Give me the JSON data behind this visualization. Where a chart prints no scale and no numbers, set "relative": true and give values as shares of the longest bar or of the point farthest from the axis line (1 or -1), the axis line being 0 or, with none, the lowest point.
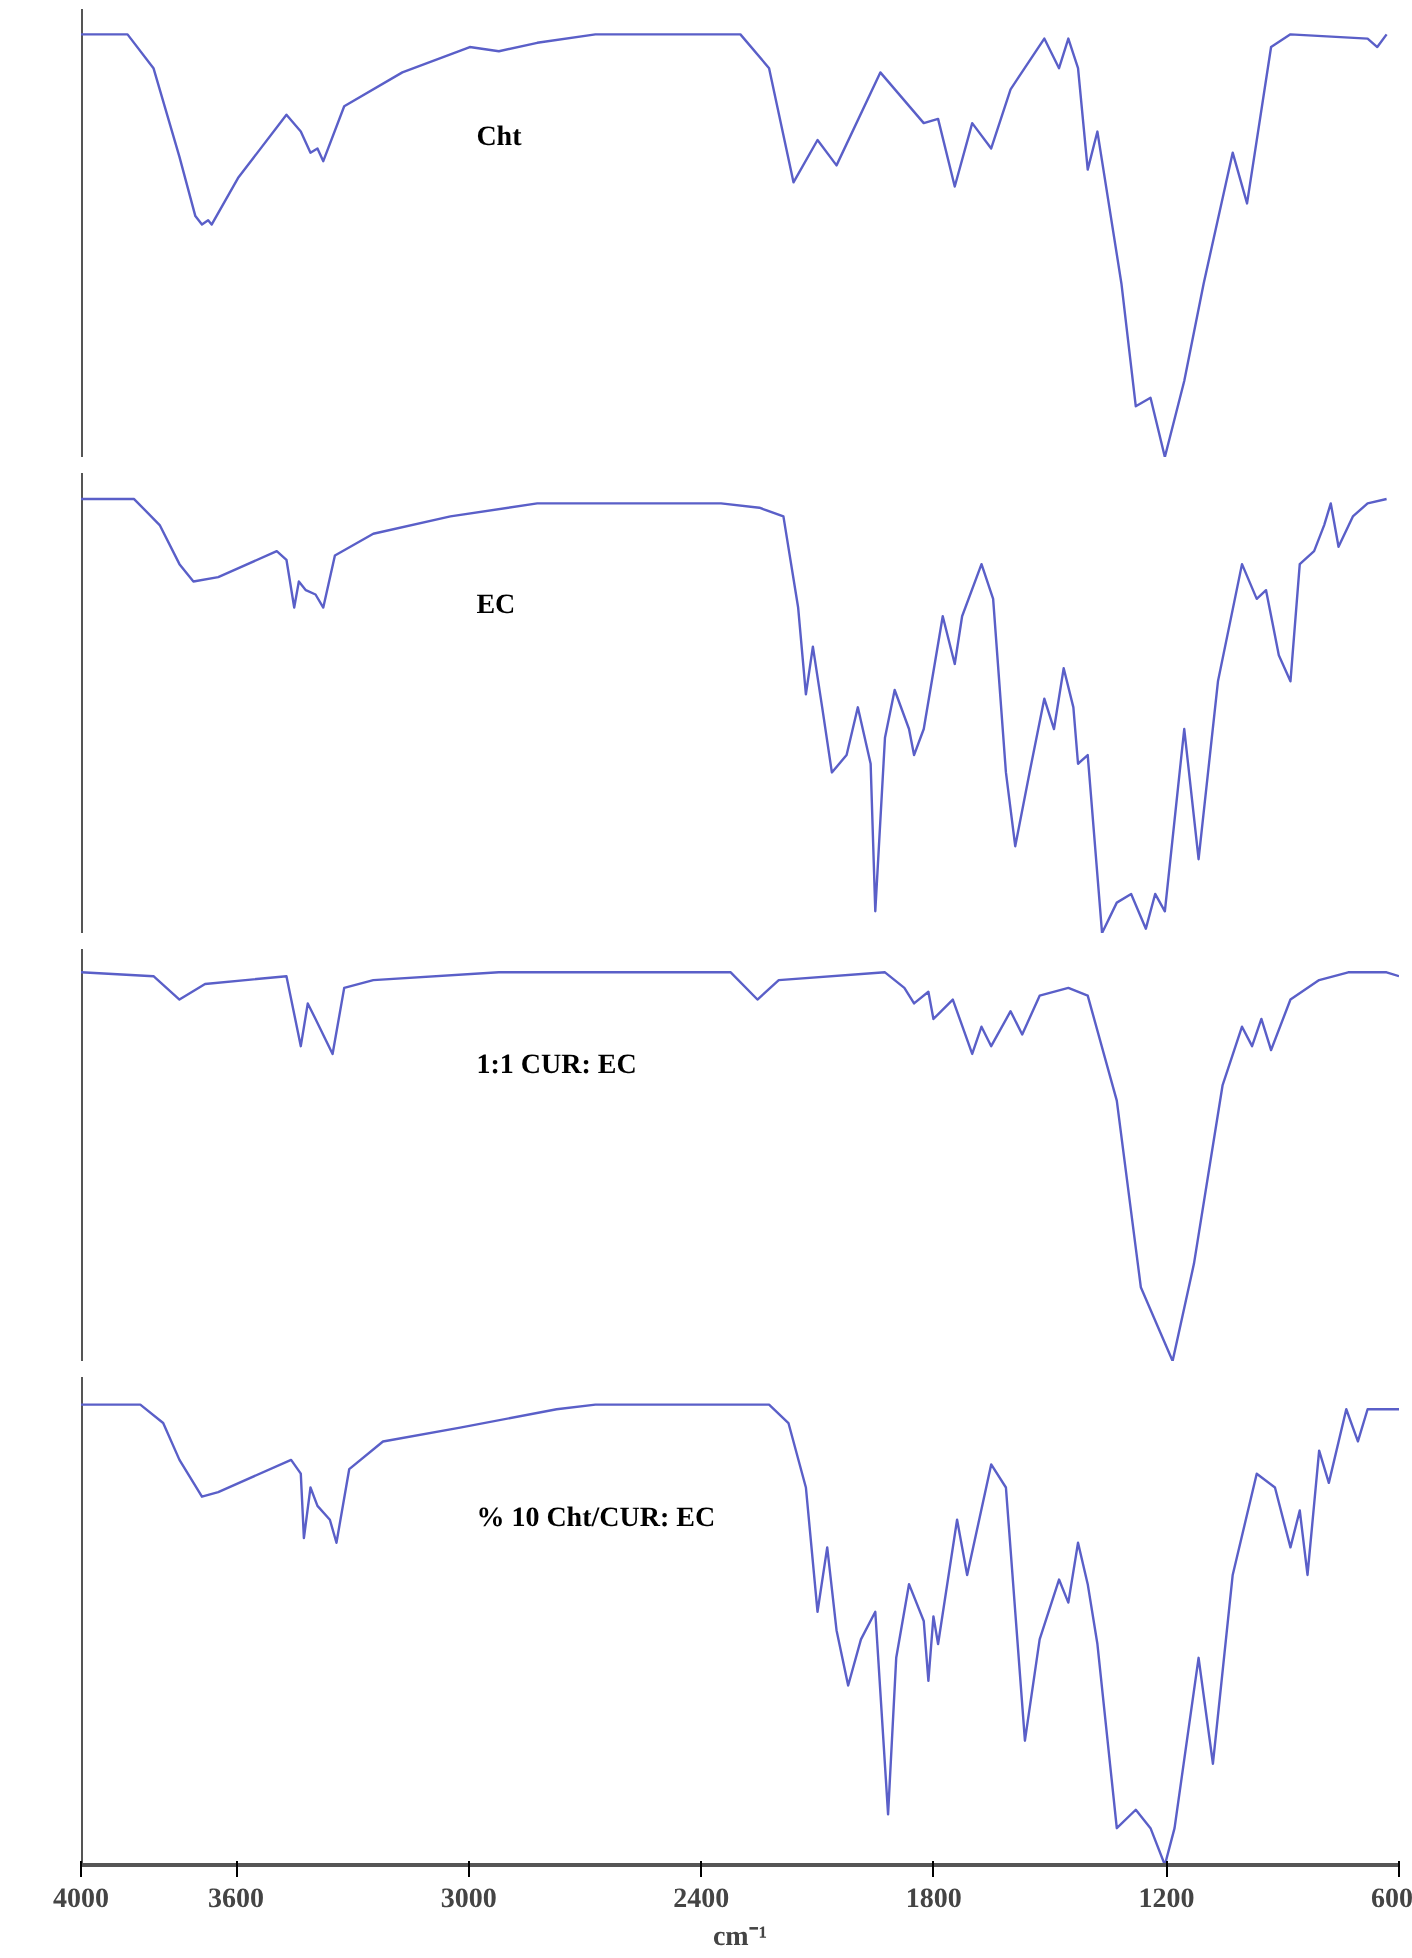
{
  "chart_data": [
    {
      "type": "line",
      "relative": true,
      "xlim": [
        4000,
        600
      ],
      "xticks": [
        4000,
        3600,
        3000,
        2400,
        1800,
        1200,
        600
      ],
      "tick_labels": false,
      "grid": false,
      "series": [
        {
          "name": "Cht",
          "color": "#5a5fc8",
          "x": [
            4000,
            3880,
            3813,
            3746,
            3705,
            3688,
            3672,
            3663,
            3595,
            3470,
            3433,
            3408,
            3390,
            3375,
            3321,
            3171,
            2997,
            2922,
            2823,
            2673,
            2299,
            2225,
            2162,
            2100,
            2051,
            1938,
            1826,
            1789,
            1746,
            1701,
            1652,
            1602,
            1515,
            1477,
            1453,
            1428,
            1403,
            1378,
            1316,
            1279,
            1241,
            1204,
            1154,
            1104,
            1029,
            992,
            930,
            880,
            681,
            656,
            632
          ],
          "values": [
            1.0,
            1.0,
            0.92,
            0.71,
            0.57,
            0.55,
            0.56,
            0.55,
            0.66,
            0.81,
            0.77,
            0.72,
            0.73,
            0.7,
            0.83,
            0.91,
            0.97,
            0.96,
            0.98,
            1.0,
            1.0,
            0.92,
            0.65,
            0.75,
            0.69,
            0.91,
            0.79,
            0.8,
            0.64,
            0.79,
            0.73,
            0.87,
            0.99,
            0.92,
            0.99,
            0.92,
            0.68,
            0.77,
            0.41,
            0.12,
            0.14,
            0.0,
            0.18,
            0.41,
            0.72,
            0.6,
            0.97,
            1.0,
            0.99,
            0.97,
            1.0
          ]
        }
      ]
    },
    {
      "type": "line",
      "relative": true,
      "xlim": [
        4000,
        600
      ],
      "xticks": [
        4000,
        3600,
        3000,
        2400,
        1800,
        1200,
        600
      ],
      "tick_labels": false,
      "grid": false,
      "series": [
        {
          "name": "EC",
          "color": "#5a5fc8",
          "x": [
            4000,
            3863,
            3797,
            3746,
            3710,
            3646,
            3495,
            3470,
            3450,
            3438,
            3420,
            3395,
            3375,
            3345,
            3246,
            3047,
            2823,
            2673,
            2349,
            2250,
            2188,
            2150,
            2130,
            2112,
            2088,
            2063,
            2025,
            1996,
            1963,
            1951,
            1926,
            1901,
            1864,
            1851,
            1826,
            1777,
            1746,
            1727,
            1677,
            1647,
            1614,
            1590,
            1553,
            1515,
            1490,
            1465,
            1440,
            1428,
            1403,
            1366,
            1328,
            1291,
            1253,
            1229,
            1204,
            1154,
            1117,
            1067,
            1005,
            967,
            943,
            910,
            880,
            856,
            819,
            793,
            776,
            756,
            719,
            681,
            632
          ],
          "values": [
            1.0,
            1.0,
            0.94,
            0.85,
            0.81,
            0.82,
            0.88,
            0.86,
            0.75,
            0.81,
            0.79,
            0.78,
            0.75,
            0.87,
            0.92,
            0.96,
            0.99,
            0.99,
            0.99,
            0.98,
            0.96,
            0.75,
            0.55,
            0.66,
            0.52,
            0.37,
            0.41,
            0.52,
            0.39,
            0.05,
            0.45,
            0.56,
            0.47,
            0.41,
            0.47,
            0.73,
            0.62,
            0.73,
            0.85,
            0.77,
            0.37,
            0.2,
            0.37,
            0.54,
            0.47,
            0.61,
            0.52,
            0.39,
            0.41,
            0.0,
            0.07,
            0.09,
            0.01,
            0.09,
            0.05,
            0.47,
            0.17,
            0.58,
            0.85,
            0.77,
            0.79,
            0.64,
            0.58,
            0.85,
            0.88,
            0.94,
            0.99,
            0.89,
            0.96,
            0.99,
            1.0
          ]
        }
      ]
    },
    {
      "type": "line",
      "relative": true,
      "xlim": [
        4000,
        600
      ],
      "xticks": [
        4000,
        3600,
        3000,
        2400,
        1800,
        1200,
        600
      ],
      "tick_labels": false,
      "grid": false,
      "series": [
        {
          "name": "1:1 CUR: EC",
          "color": "#5a5fc8",
          "x": [
            4000,
            3813,
            3746,
            3680,
            3470,
            3433,
            3415,
            3395,
            3351,
            3321,
            3246,
            2922,
            2673,
            2324,
            2255,
            2200,
            1926,
            1876,
            1851,
            1814,
            1801,
            1751,
            1701,
            1677,
            1652,
            1602,
            1572,
            1527,
            1453,
            1403,
            1328,
            1266,
            1184,
            1129,
            1055,
            1005,
            979,
            955,
            930,
            880,
            806,
            731,
            632,
            600
          ],
          "values": [
            1.0,
            0.99,
            0.93,
            0.97,
            0.99,
            0.81,
            0.92,
            0.88,
            0.79,
            0.96,
            0.98,
            1.0,
            1.0,
            1.0,
            0.93,
            0.98,
            1.0,
            0.96,
            0.92,
            0.95,
            0.88,
            0.93,
            0.79,
            0.86,
            0.81,
            0.9,
            0.84,
            0.94,
            0.96,
            0.94,
            0.67,
            0.19,
            0.0,
            0.25,
            0.71,
            0.86,
            0.81,
            0.88,
            0.8,
            0.93,
            0.98,
            1.0,
            1.0,
            0.99
          ]
        }
      ]
    },
    {
      "type": "line",
      "relative": true,
      "xlim": [
        4000,
        600
      ],
      "xticks": [
        4000,
        3600,
        3000,
        2400,
        1800,
        1200,
        600
      ],
      "tick_labels": "x",
      "grid": false,
      "xlabel": "cm⁻¹",
      "series": [
        {
          "name": "% 10 Cht/CUR: EC",
          "color": "#5a5fc8",
          "x": [
            4000,
            3847,
            3788,
            3746,
            3688,
            3646,
            3458,
            3433,
            3425,
            3408,
            3390,
            3358,
            3341,
            3308,
            3221,
            3022,
            2773,
            2673,
            2299,
            2225,
            2175,
            2130,
            2100,
            2075,
            2051,
            2021,
            1988,
            1951,
            1918,
            1897,
            1864,
            1826,
            1814,
            1801,
            1789,
            1740,
            1714,
            1652,
            1614,
            1565,
            1527,
            1477,
            1453,
            1428,
            1403,
            1378,
            1328,
            1279,
            1241,
            1204,
            1179,
            1117,
            1080,
            1029,
            967,
            920,
            880,
            856,
            836,
            806,
            781,
            736,
            706,
            681,
            600
          ],
          "values": [
            1.0,
            1.0,
            0.96,
            0.88,
            0.8,
            0.81,
            0.88,
            0.85,
            0.71,
            0.82,
            0.78,
            0.75,
            0.7,
            0.86,
            0.92,
            0.95,
            0.99,
            1.0,
            1.0,
            1.0,
            0.96,
            0.82,
            0.55,
            0.69,
            0.51,
            0.39,
            0.49,
            0.55,
            0.11,
            0.45,
            0.61,
            0.53,
            0.4,
            0.54,
            0.48,
            0.75,
            0.63,
            0.87,
            0.82,
            0.27,
            0.49,
            0.62,
            0.57,
            0.7,
            0.61,
            0.48,
            0.08,
            0.12,
            0.08,
            0.0,
            0.08,
            0.45,
            0.22,
            0.63,
            0.85,
            0.82,
            0.69,
            0.77,
            0.63,
            0.9,
            0.83,
            0.99,
            0.92,
            0.99,
            0.99
          ]
        }
      ]
    }
  ]
}
